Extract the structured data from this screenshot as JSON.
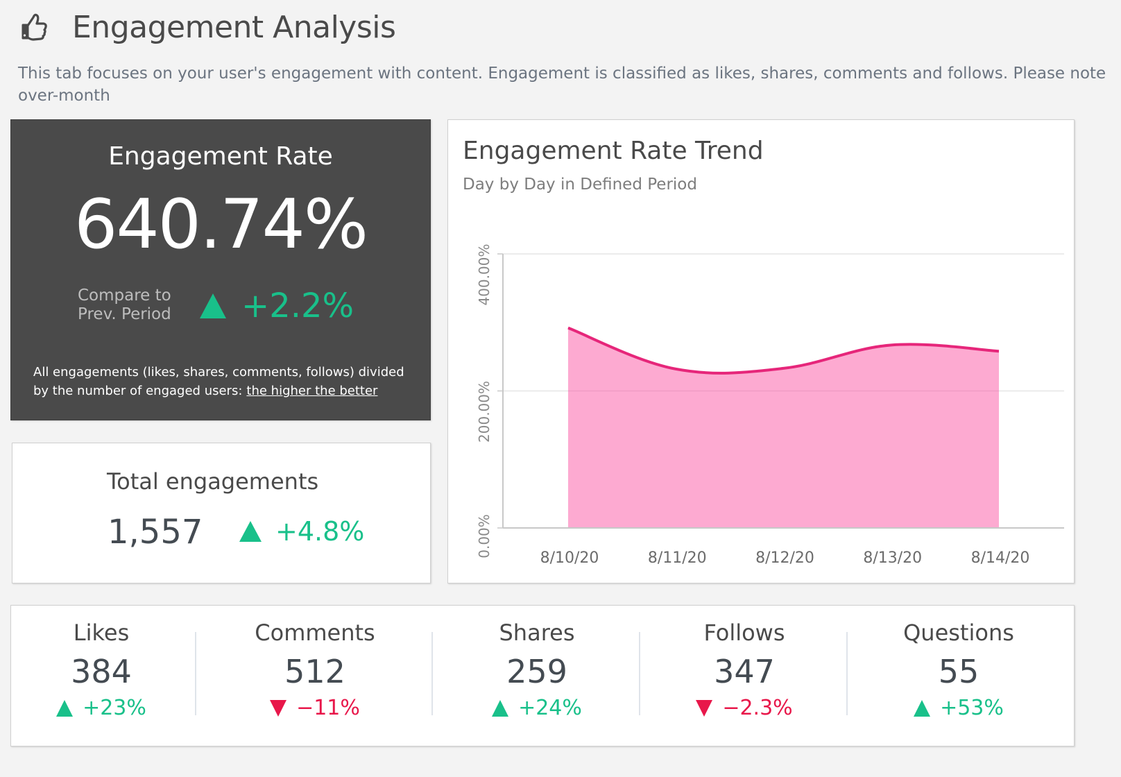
{
  "header": {
    "icon": "thumbs-up-icon",
    "title": "Engagement Analysis",
    "description_line1": "This tab focuses on your user's engagement with content. Engagement is classified as likes, shares, comments and follows. Please note",
    "description_line2": "over-month"
  },
  "engagement_rate": {
    "title": "Engagement Rate",
    "value": "640.74%",
    "compare_line1": "Compare to",
    "compare_line2": "Prev. Period",
    "delta": "+2.2%",
    "delta_direction": "up",
    "note_line1": "All engagements (likes, shares, comments, follows) divided",
    "note_line2": "by the number of engaged users:",
    "note_link": "the higher the better"
  },
  "total_engagements": {
    "title": "Total engagements",
    "value": "1,557",
    "delta": "+4.8%",
    "delta_direction": "up"
  },
  "trend": {
    "title": "Engagement Rate Trend",
    "subtitle": "Day by Day in Defined Period"
  },
  "metrics": [
    {
      "label": "Likes",
      "value": "384",
      "delta": "+23%",
      "direction": "up"
    },
    {
      "label": "Comments",
      "value": "512",
      "delta": "−11%",
      "direction": "down"
    },
    {
      "label": "Shares",
      "value": "259",
      "delta": "+24%",
      "direction": "up"
    },
    {
      "label": "Follows",
      "value": "347",
      "delta": "−2.3%",
      "direction": "down"
    },
    {
      "label": "Questions",
      "value": "55",
      "delta": "+53%",
      "direction": "up"
    }
  ],
  "colors": {
    "positive": "#19c08a",
    "negative": "#e8174a",
    "area_fill": "#fdaad1",
    "area_line": "#e6267a",
    "dark_card": "#4a4a4a"
  },
  "chart_data": {
    "type": "area",
    "title": "Engagement Rate Trend",
    "subtitle": "Day by Day in Defined Period",
    "xlabel": "",
    "ylabel": "",
    "x": [
      "8/10/20",
      "8/11/20",
      "8/12/20",
      "8/13/20",
      "8/14/20"
    ],
    "series": [
      {
        "name": "Engagement Rate",
        "values": [
          292,
          232,
          233,
          267,
          258
        ]
      }
    ],
    "yticks": [
      0,
      200,
      400
    ],
    "ytick_labels": [
      "0.00%",
      "200.00%",
      "400.00%"
    ],
    "ylim": [
      0,
      400
    ],
    "grid": true,
    "legend": "none",
    "smooth": true
  }
}
